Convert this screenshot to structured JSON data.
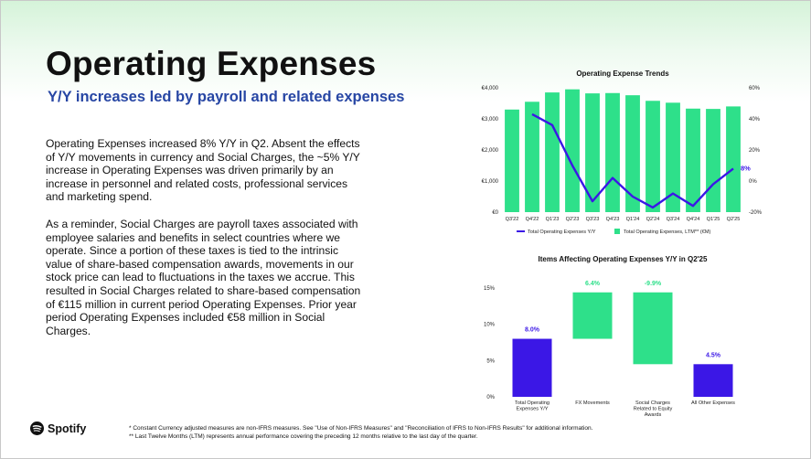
{
  "title": "Operating Expenses",
  "subtitle": "Y/Y increases led by payroll and related expenses",
  "paragraphs": [
    "Operating Expenses increased 8% Y/Y in Q2. Absent the effects of Y/Y movements in currency and Social Charges, the ~5% Y/Y increase in Operating Expenses was driven primarily by an increase in personnel and related costs, professional services and marketing spend.",
    "As a reminder, Social Charges are payroll taxes associated with employee salaries and benefits in select countries where we operate. Since a portion of these taxes is tied to the intrinsic value of share-based compensation awards, movements in our stock price can lead to fluctuations in the taxes we accrue. This resulted in Social Charges related to share-based compensation of €115 million in current period Operating Expenses. Prior year period Operating Expenses included €58 million in Social Charges."
  ],
  "footnotes": [
    "* Constant Currency adjusted measures are non-IFRS measures. See \"Use of Non-IFRS Measures\" and \"Reconciliation of IFRS to Non-IFRS Results\" for additional information.",
    "** Last Twelve Months (LTM) represents annual performance covering the preceding 12 months relative to the last day of the quarter."
  ],
  "logo": {
    "text": "Spotify",
    "icon": "spotify-logo-icon"
  },
  "colors": {
    "green": "#2ee08a",
    "purple": "#3b17e6",
    "subtitle_blue": "#2746a4"
  },
  "chart_data": [
    {
      "type": "bar",
      "title": "Operating Expense Trends",
      "categories": [
        "Q3'22",
        "Q4'22",
        "Q1'23",
        "Q2'23",
        "Q3'23",
        "Q4'23",
        "Q1'24",
        "Q2'24",
        "Q3'24",
        "Q4'24",
        "Q1'25",
        "Q2'25"
      ],
      "series": [
        {
          "name": "Total Operating Expenses, LTM** (€M)",
          "type": "bar",
          "axis": "left",
          "values": [
            3300,
            3550,
            3850,
            3950,
            3820,
            3830,
            3760,
            3580,
            3520,
            3330,
            3320,
            3400
          ]
        },
        {
          "name": "Total Operating Expenses Y/Y",
          "type": "line",
          "axis": "right",
          "values": [
            null,
            43,
            36,
            10,
            -13,
            2,
            -10,
            -17,
            -8,
            -16,
            -2,
            8
          ]
        }
      ],
      "left_axis": {
        "ticks": [
          "€0",
          "€1,000",
          "€2,000",
          "€3,000",
          "€4,000"
        ],
        "ylim": [
          0,
          4000
        ]
      },
      "right_axis": {
        "ticks": [
          "-20%",
          "0%",
          "20%",
          "40%",
          "60%"
        ],
        "ylim": [
          -20,
          60
        ]
      },
      "annotations": [
        {
          "label": "8%",
          "category": "Q2'25"
        }
      ],
      "legend": "bottom"
    },
    {
      "type": "waterfall",
      "title": "Items Affecting Operating Expenses Y/Y in Q2'25",
      "categories": [
        "Total Operating Expenses Y/Y",
        "FX Movements",
        "Social Charges Related to Equity Awards",
        "All Other Expenses"
      ],
      "steps": [
        {
          "label": "8.0%",
          "start": 0,
          "end": 8.0,
          "color": "purple"
        },
        {
          "label": "6.4%",
          "start": 8.0,
          "end": 14.4,
          "color": "green"
        },
        {
          "label": "-9.9%",
          "start": 14.4,
          "end": 4.5,
          "color": "green"
        },
        {
          "label": "4.5%",
          "start": 0,
          "end": 4.5,
          "color": "purple"
        }
      ],
      "y_axis": {
        "ticks": [
          "0%",
          "5%",
          "10%",
          "15%"
        ],
        "ylim": [
          0,
          15
        ]
      }
    }
  ]
}
